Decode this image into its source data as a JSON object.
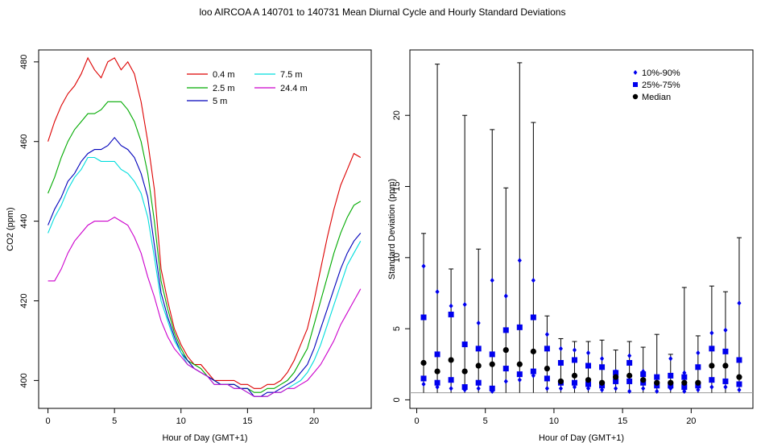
{
  "figure_title": "loo   AIRCOA A   140701 to 140731   Mean Diurnal Cycle and Hourly Standard Deviations",
  "chart_data": [
    {
      "type": "line",
      "xlabel": "Hour of Day (GMT+1)",
      "ylabel": "CO2 (ppm)",
      "xlim": [
        -0.7,
        24.3
      ],
      "ylim": [
        393,
        483
      ],
      "xticks": [
        0,
        5,
        10,
        15,
        20
      ],
      "yticks": [
        400,
        420,
        440,
        460,
        480
      ],
      "legend_position": "top-center",
      "series": [
        {
          "name": "0.4 m",
          "color": "#dd0000",
          "x": [
            0,
            0.5,
            1,
            1.5,
            2,
            2.5,
            3,
            3.5,
            4,
            4.5,
            5,
            5.5,
            6,
            6.5,
            7,
            7.5,
            8,
            8.5,
            9,
            9.5,
            10,
            10.5,
            11,
            11.5,
            12,
            12.5,
            13,
            13.5,
            14,
            14.5,
            15,
            15.5,
            16,
            16.5,
            17,
            17.5,
            18,
            18.5,
            19,
            19.5,
            20,
            20.5,
            21,
            21.5,
            22,
            22.5,
            23,
            23.5
          ],
          "y": [
            460,
            465,
            469,
            472,
            474,
            477,
            481,
            478,
            476,
            480,
            481,
            478,
            480,
            477,
            470,
            460,
            448,
            428,
            420,
            413,
            409,
            406,
            404,
            404,
            402,
            400,
            400,
            400,
            400,
            399,
            399,
            398,
            398,
            399,
            399,
            400,
            402,
            405,
            409,
            413,
            420,
            428,
            436,
            443,
            449,
            453,
            457,
            456
          ]
        },
        {
          "name": "2.5 m",
          "color": "#00aa00",
          "x": [
            0,
            0.5,
            1,
            1.5,
            2,
            2.5,
            3,
            3.5,
            4,
            4.5,
            5,
            5.5,
            6,
            6.5,
            7,
            7.5,
            8,
            8.5,
            9,
            9.5,
            10,
            10.5,
            11,
            11.5,
            12,
            12.5,
            13,
            13.5,
            14,
            14.5,
            15,
            15.5,
            16,
            16.5,
            17,
            17.5,
            18,
            18.5,
            19,
            19.5,
            20,
            20.5,
            21,
            21.5,
            22,
            22.5,
            23,
            23.5
          ],
          "y": [
            447,
            451,
            456,
            460,
            463,
            465,
            467,
            467,
            468,
            470,
            470,
            470,
            468,
            465,
            460,
            452,
            440,
            425,
            418,
            412,
            408,
            405,
            404,
            403,
            401,
            400,
            399,
            399,
            399,
            398,
            398,
            397,
            397,
            398,
            398,
            399,
            400,
            402,
            405,
            408,
            414,
            420,
            426,
            432,
            437,
            441,
            444,
            445
          ]
        },
        {
          "name": "5 m",
          "color": "#0000bb",
          "x": [
            0,
            0.5,
            1,
            1.5,
            2,
            2.5,
            3,
            3.5,
            4,
            4.5,
            5,
            5.5,
            6,
            6.5,
            7,
            7.5,
            8,
            8.5,
            9,
            9.5,
            10,
            10.5,
            11,
            11.5,
            12,
            12.5,
            13,
            13.5,
            14,
            14.5,
            15,
            15.5,
            16,
            16.5,
            17,
            17.5,
            18,
            18.5,
            19,
            19.5,
            20,
            20.5,
            21,
            21.5,
            22,
            22.5,
            23,
            23.5
          ],
          "y": [
            439,
            443,
            446,
            450,
            452,
            455,
            457,
            458,
            458,
            459,
            461,
            459,
            458,
            456,
            452,
            446,
            434,
            422,
            416,
            411,
            407,
            405,
            403,
            402,
            401,
            400,
            399,
            399,
            399,
            398,
            398,
            396,
            396,
            397,
            397,
            398,
            399,
            400,
            402,
            404,
            408,
            413,
            418,
            423,
            428,
            432,
            435,
            437
          ]
        },
        {
          "name": "7.5 m",
          "color": "#00dddd",
          "x": [
            0,
            0.5,
            1,
            1.5,
            2,
            2.5,
            3,
            3.5,
            4,
            4.5,
            5,
            5.5,
            6,
            6.5,
            7,
            7.5,
            8,
            8.5,
            9,
            9.5,
            10,
            10.5,
            11,
            11.5,
            12,
            12.5,
            13,
            13.5,
            14,
            14.5,
            15,
            15.5,
            16,
            16.5,
            17,
            17.5,
            18,
            18.5,
            19,
            19.5,
            20,
            20.5,
            21,
            21.5,
            22,
            22.5,
            23,
            23.5
          ],
          "y": [
            437,
            441,
            444,
            448,
            451,
            453,
            456,
            456,
            455,
            455,
            455,
            453,
            452,
            450,
            447,
            441,
            431,
            420,
            415,
            410,
            407,
            404,
            403,
            402,
            401,
            399,
            399,
            399,
            398,
            398,
            397,
            396,
            396,
            396,
            397,
            397,
            398,
            399,
            400,
            402,
            405,
            409,
            414,
            419,
            424,
            429,
            432,
            435
          ]
        },
        {
          "name": "24.4 m",
          "color": "#cc00cc",
          "x": [
            0,
            0.5,
            1,
            1.5,
            2,
            2.5,
            3,
            3.5,
            4,
            4.5,
            5,
            5.5,
            6,
            6.5,
            7,
            7.5,
            8,
            8.5,
            9,
            9.5,
            10,
            10.5,
            11,
            11.5,
            12,
            12.5,
            13,
            13.5,
            14,
            14.5,
            15,
            15.5,
            16,
            16.5,
            17,
            17.5,
            18,
            18.5,
            19,
            19.5,
            20,
            20.5,
            21,
            21.5,
            22,
            22.5,
            23,
            23.5
          ],
          "y": [
            425,
            425,
            428,
            432,
            435,
            437,
            439,
            440,
            440,
            440,
            441,
            440,
            439,
            436,
            432,
            426,
            421,
            415,
            411,
            408,
            406,
            404,
            403,
            402,
            401,
            399,
            399,
            399,
            398,
            398,
            397,
            396,
            396,
            396,
            397,
            397,
            398,
            398,
            399,
            400,
            402,
            404,
            407,
            410,
            414,
            417,
            420,
            423
          ]
        }
      ]
    },
    {
      "type": "scatter",
      "xlabel": "Hour of Day (GMT+1)",
      "ylabel": "Standard Deviation (ppm)",
      "xlim": [
        -0.5,
        24.5
      ],
      "ylim": [
        -0.6,
        24.6
      ],
      "xticks": [
        0,
        5,
        10,
        15,
        20
      ],
      "yticks": [
        0,
        5,
        10,
        15,
        20
      ],
      "reference_line": 0.5,
      "legend_position": "top-right",
      "legend": [
        {
          "label": "10%-90%",
          "color": "#0000ee"
        },
        {
          "label": "25%-75%",
          "color": "#0000ee"
        },
        {
          "label": "Median",
          "color": "#000000"
        }
      ],
      "hours": [
        0.5,
        1.5,
        2.5,
        3.5,
        4.5,
        5.5,
        6.5,
        7.5,
        8.5,
        9.5,
        10.5,
        11.5,
        12.5,
        13.5,
        14.5,
        15.5,
        16.5,
        17.5,
        18.5,
        19.5,
        20.5,
        21.5,
        22.5,
        23.5
      ],
      "max": [
        11.7,
        23.6,
        9.2,
        20.0,
        10.6,
        19.0,
        14.9,
        23.7,
        19.5,
        5.9,
        4.3,
        4.1,
        4.1,
        4.2,
        3.5,
        4.1,
        3.7,
        4.6,
        3.2,
        7.9,
        4.5,
        8.0,
        7.6,
        11.4
      ],
      "min": [
        0.5,
        0.5,
        0.5,
        0.5,
        0.5,
        0.5,
        0.5,
        0.5,
        0.5,
        0.5,
        0.5,
        0.5,
        0.5,
        0.5,
        0.5,
        0.5,
        0.5,
        0.5,
        0.5,
        0.5,
        0.5,
        0.5,
        0.5,
        0.5
      ],
      "p10": [
        1.1,
        0.9,
        0.8,
        0.7,
        0.8,
        0.6,
        1.3,
        1.4,
        1.7,
        0.8,
        0.8,
        0.9,
        0.8,
        0.7,
        0.8,
        0.6,
        0.8,
        0.6,
        0.8,
        0.6,
        0.7,
        0.9,
        0.9,
        0.7
      ],
      "p90": [
        9.4,
        7.6,
        6.6,
        6.7,
        5.4,
        8.4,
        7.3,
        9.8,
        8.4,
        4.6,
        3.6,
        3.5,
        3.3,
        2.9,
        2.0,
        3.1,
        2.0,
        1.6,
        2.9,
        1.9,
        3.3,
        4.7,
        4.9,
        6.8
      ],
      "p25": [
        1.5,
        1.2,
        1.4,
        0.9,
        1.2,
        0.8,
        2.2,
        1.8,
        2.0,
        1.5,
        1.2,
        1.2,
        1.1,
        1.0,
        1.3,
        1.3,
        1.2,
        1.0,
        1.0,
        0.9,
        1.0,
        1.4,
        1.3,
        1.1
      ],
      "p75": [
        5.8,
        3.2,
        6.0,
        3.9,
        3.6,
        3.2,
        4.9,
        5.1,
        5.8,
        3.6,
        2.6,
        2.8,
        2.4,
        2.3,
        1.9,
        2.6,
        1.8,
        1.6,
        1.7,
        1.6,
        2.3,
        3.6,
        3.4,
        2.8
      ],
      "median": [
        2.6,
        2.0,
        2.8,
        2.0,
        2.4,
        2.5,
        3.5,
        2.5,
        3.4,
        2.2,
        1.3,
        1.7,
        1.4,
        1.2,
        1.6,
        1.7,
        1.4,
        1.2,
        1.2,
        1.2,
        1.2,
        2.4,
        2.4,
        1.6
      ]
    }
  ]
}
